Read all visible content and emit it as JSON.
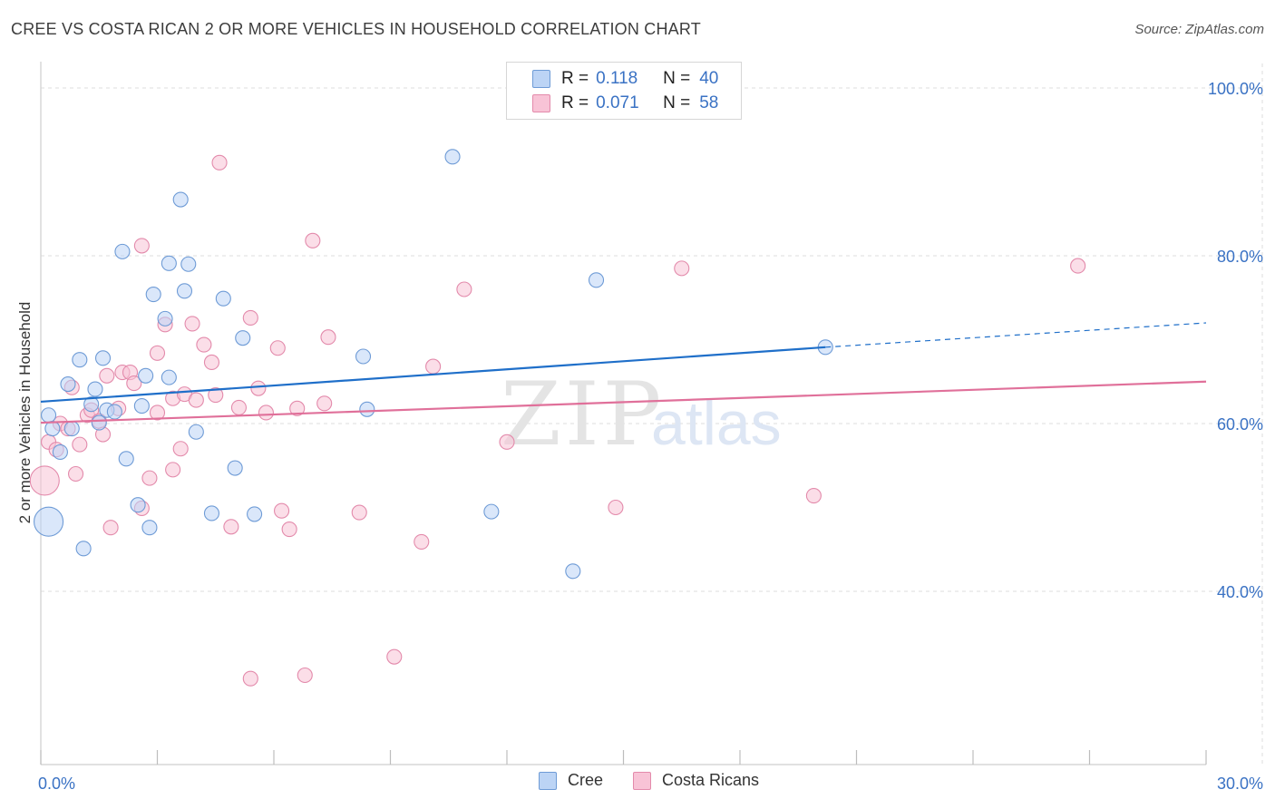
{
  "title": "CREE VS COSTA RICAN 2 OR MORE VEHICLES IN HOUSEHOLD CORRELATION CHART",
  "source": "Source: ZipAtlas.com",
  "watermark": {
    "zip": "ZIP",
    "atlas": "atlas"
  },
  "legend": {
    "rows": [
      {
        "r_label": "R =",
        "r_value": "0.118",
        "n_label": "N =",
        "n_value": "40"
      },
      {
        "r_label": "R =",
        "r_value": "0.071",
        "n_label": "N =",
        "n_value": "58"
      }
    ]
  },
  "bottom_legend": [
    "Cree",
    "Costa Ricans"
  ],
  "colors": {
    "cree": "#1f6fc9",
    "cree_fill": "#bcd4f5",
    "costa": "#e0709a",
    "costa_fill": "#f8c3d6",
    "axis_text": "#3a72c4",
    "grid": "#dcdcdc"
  },
  "chart_data": {
    "type": "scatter",
    "title": "CREE VS COSTA RICAN 2 OR MORE VEHICLES IN HOUSEHOLD CORRELATION CHART",
    "xlabel": "",
    "ylabel": "2 or more Vehicles in Household",
    "xlim": [
      0,
      30
    ],
    "ylim": [
      22,
      102
    ],
    "x_tick_labels": [
      {
        "value": 0,
        "label": "0.0%"
      },
      {
        "value": 30,
        "label": "30.0%"
      }
    ],
    "y_tick_labels": [
      {
        "value": 100,
        "label": "100.0%"
      },
      {
        "value": 80,
        "label": "80.0%"
      },
      {
        "value": 60,
        "label": "60.0%"
      },
      {
        "value": 40,
        "label": "40.0%"
      }
    ],
    "x_minor_ticks": [
      0,
      3,
      6,
      9,
      12,
      15,
      18,
      21,
      24,
      27,
      30
    ],
    "y_gridlines": [
      100,
      80,
      60,
      40
    ],
    "series": [
      {
        "name": "Cree",
        "r": 0.118,
        "n": 40,
        "trend": {
          "x0": 0,
          "y0": 62.6,
          "x1": 20.2,
          "y1": 69.1,
          "dashed_to_x": 30,
          "dashed_to_y": 72.0
        },
        "points": [
          [
            0.2,
            48.3,
            1
          ],
          [
            0.2,
            61.0,
            0
          ],
          [
            0.3,
            59.4,
            0
          ],
          [
            0.5,
            56.6,
            0
          ],
          [
            0.7,
            64.7,
            0
          ],
          [
            0.8,
            59.4,
            0
          ],
          [
            1.0,
            67.6,
            0
          ],
          [
            1.1,
            45.1,
            0
          ],
          [
            1.3,
            62.3,
            0
          ],
          [
            1.4,
            64.1,
            0
          ],
          [
            1.5,
            60.1,
            0
          ],
          [
            1.6,
            67.8,
            0
          ],
          [
            1.7,
            61.6,
            0
          ],
          [
            1.9,
            61.4,
            0
          ],
          [
            2.1,
            80.5,
            0
          ],
          [
            2.2,
            55.8,
            0
          ],
          [
            2.5,
            50.3,
            0
          ],
          [
            2.6,
            62.1,
            0
          ],
          [
            2.7,
            65.7,
            0
          ],
          [
            2.8,
            47.6,
            0
          ],
          [
            2.9,
            75.4,
            0
          ],
          [
            3.2,
            72.5,
            0
          ],
          [
            3.3,
            79.1,
            0
          ],
          [
            3.3,
            65.5,
            0
          ],
          [
            3.6,
            86.7,
            0
          ],
          [
            3.7,
            75.8,
            0
          ],
          [
            3.8,
            79.0,
            0
          ],
          [
            4.0,
            59.0,
            0
          ],
          [
            4.4,
            49.3,
            0
          ],
          [
            4.7,
            74.9,
            0
          ],
          [
            5.0,
            54.7,
            0
          ],
          [
            5.2,
            70.2,
            0
          ],
          [
            5.5,
            49.2,
            0
          ],
          [
            8.3,
            68.0,
            0
          ],
          [
            8.4,
            61.7,
            0
          ],
          [
            10.6,
            91.8,
            0
          ],
          [
            11.6,
            49.5,
            0
          ],
          [
            13.7,
            42.4,
            0
          ],
          [
            14.3,
            77.1,
            0
          ],
          [
            20.2,
            69.1,
            0
          ]
        ]
      },
      {
        "name": "Costa Ricans",
        "r": 0.071,
        "n": 58,
        "trend": {
          "x0": 0,
          "y0": 60.1,
          "x1": 30,
          "y1": 65.0
        },
        "points": [
          [
            0.1,
            53.2,
            1
          ],
          [
            0.2,
            57.8,
            0
          ],
          [
            0.4,
            56.9,
            0
          ],
          [
            0.5,
            60.0,
            0
          ],
          [
            0.7,
            59.4,
            0
          ],
          [
            0.8,
            64.3,
            0
          ],
          [
            0.9,
            54.0,
            0
          ],
          [
            1.0,
            57.5,
            0
          ],
          [
            1.2,
            61.0,
            0
          ],
          [
            1.3,
            61.6,
            0
          ],
          [
            1.5,
            60.3,
            0
          ],
          [
            1.6,
            58.7,
            0
          ],
          [
            1.7,
            65.7,
            0
          ],
          [
            1.8,
            47.6,
            0
          ],
          [
            2.0,
            61.8,
            0
          ],
          [
            2.1,
            66.1,
            0
          ],
          [
            2.3,
            66.1,
            0
          ],
          [
            2.4,
            64.8,
            0
          ],
          [
            2.6,
            81.2,
            0
          ],
          [
            2.6,
            49.9,
            0
          ],
          [
            2.8,
            53.5,
            0
          ],
          [
            3.0,
            61.3,
            0
          ],
          [
            3.0,
            68.4,
            0
          ],
          [
            3.2,
            71.8,
            0
          ],
          [
            3.4,
            63.0,
            0
          ],
          [
            3.4,
            54.5,
            0
          ],
          [
            3.6,
            57.0,
            0
          ],
          [
            3.7,
            63.5,
            0
          ],
          [
            3.9,
            71.9,
            0
          ],
          [
            4.0,
            62.8,
            0
          ],
          [
            4.2,
            69.4,
            0
          ],
          [
            4.4,
            67.3,
            0
          ],
          [
            4.5,
            63.4,
            0
          ],
          [
            4.6,
            91.1,
            0
          ],
          [
            4.9,
            47.7,
            0
          ],
          [
            5.1,
            61.9,
            0
          ],
          [
            5.4,
            29.6,
            0
          ],
          [
            5.4,
            72.6,
            0
          ],
          [
            5.6,
            64.2,
            0
          ],
          [
            5.8,
            61.3,
            0
          ],
          [
            6.1,
            69.0,
            0
          ],
          [
            6.2,
            49.6,
            0
          ],
          [
            6.4,
            47.4,
            0
          ],
          [
            6.6,
            61.8,
            0
          ],
          [
            6.8,
            30.0,
            0
          ],
          [
            7.0,
            81.8,
            0
          ],
          [
            7.3,
            62.4,
            0
          ],
          [
            7.4,
            70.3,
            0
          ],
          [
            8.2,
            49.4,
            0
          ],
          [
            9.1,
            32.2,
            0
          ],
          [
            9.8,
            45.9,
            0
          ],
          [
            10.1,
            66.8,
            0
          ],
          [
            10.9,
            76.0,
            0
          ],
          [
            12.0,
            57.8,
            0
          ],
          [
            14.8,
            50.0,
            0
          ],
          [
            16.5,
            78.5,
            0
          ],
          [
            19.9,
            51.4,
            0
          ],
          [
            26.7,
            78.8,
            0
          ]
        ]
      }
    ]
  }
}
